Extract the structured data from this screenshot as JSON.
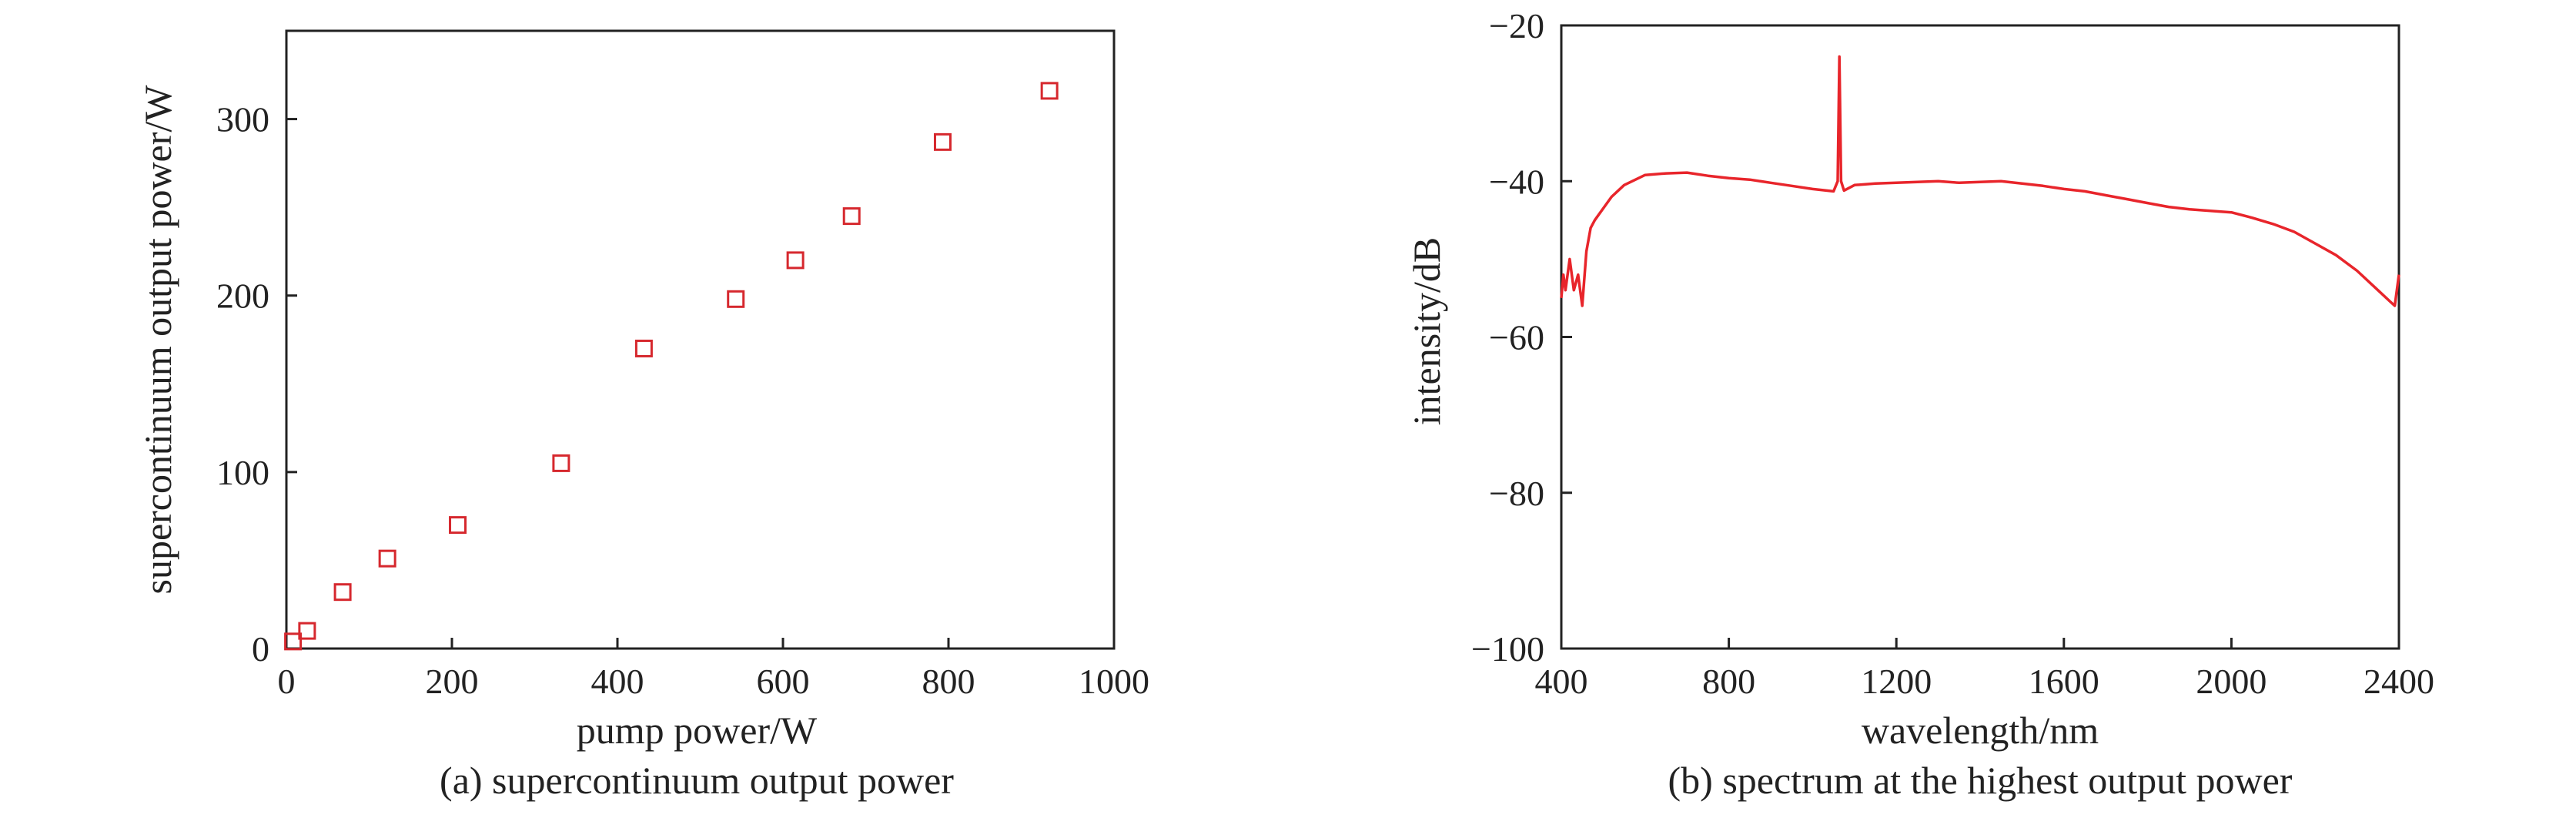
{
  "chart_data": [
    {
      "type": "scatter",
      "caption": "(a) supercontinuum output power",
      "xlabel": "pump power/W",
      "ylabel": "supercontinuum output power/W",
      "xlim": [
        0,
        1000
      ],
      "ylim": [
        0,
        350
      ],
      "xticks": [
        0,
        200,
        400,
        600,
        800,
        1000
      ],
      "yticks": [
        0,
        100,
        200,
        300
      ],
      "marker": "open-square",
      "color": "#d6282e",
      "grid": false,
      "series": [
        {
          "x": [
            8,
            25,
            68,
            122,
            207,
            332,
            432,
            543,
            615,
            683,
            793,
            922
          ],
          "y": [
            4,
            10,
            32,
            51,
            70,
            105,
            170,
            198,
            220,
            245,
            287,
            316
          ]
        }
      ]
    },
    {
      "type": "line",
      "caption": "(b) spectrum at the highest output power",
      "xlabel": "wavelength/nm",
      "ylabel": "intensity/dB",
      "xlim": [
        400,
        2400
      ],
      "ylim": [
        -100,
        -20
      ],
      "xticks": [
        400,
        800,
        1200,
        1600,
        2000,
        2400
      ],
      "yticks": [
        -100,
        -80,
        -60,
        -40,
        -20
      ],
      "color": "#e8252b",
      "grid": false,
      "series": [
        {
          "x": [
            400,
            405,
            410,
            420,
            430,
            440,
            450,
            460,
            470,
            480,
            500,
            520,
            550,
            600,
            650,
            700,
            750,
            800,
            850,
            900,
            950,
            1000,
            1050,
            1060,
            1064,
            1068,
            1075,
            1100,
            1150,
            1200,
            1250,
            1300,
            1350,
            1400,
            1450,
            1500,
            1550,
            1600,
            1650,
            1700,
            1750,
            1800,
            1850,
            1900,
            1950,
            2000,
            2050,
            2100,
            2150,
            2200,
            2250,
            2300,
            2350,
            2380,
            2390,
            2395,
            2400
          ],
          "y": [
            -55,
            -52,
            -54,
            -50,
            -54,
            -52,
            -56,
            -49,
            -46,
            -45,
            -43.5,
            -42,
            -40.5,
            -39.2,
            -39,
            -38.9,
            -39.3,
            -39.6,
            -39.8,
            -40.2,
            -40.6,
            -41,
            -41.3,
            -40,
            -24,
            -40,
            -41.2,
            -40.5,
            -40.3,
            -40.2,
            -40.1,
            -40,
            -40.2,
            -40.1,
            -40,
            -40.3,
            -40.6,
            -41,
            -41.3,
            -41.8,
            -42.3,
            -42.8,
            -43.3,
            -43.6,
            -43.8,
            -44,
            -44.7,
            -45.5,
            -46.5,
            -48,
            -49.5,
            -51.5,
            -54,
            -55.5,
            -56,
            -54,
            -52
          ]
        }
      ]
    }
  ]
}
